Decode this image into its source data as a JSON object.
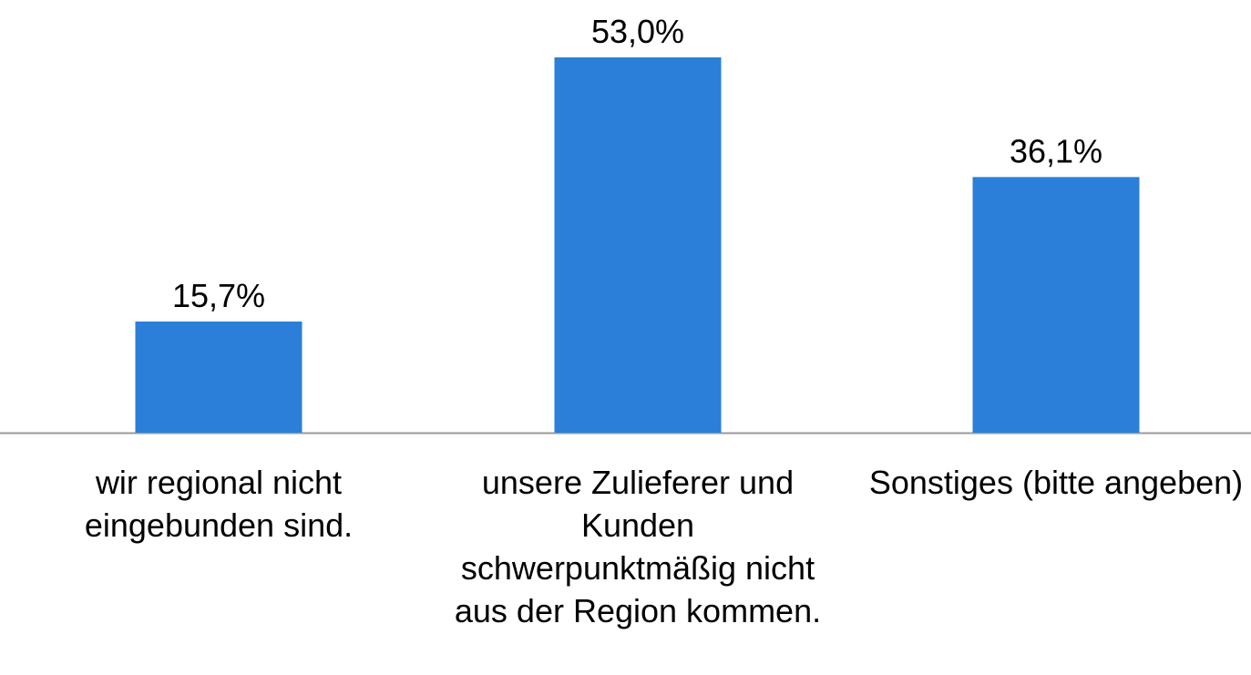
{
  "chart_data": {
    "type": "bar",
    "categories": [
      "wir regional nicht eingebunden sind.",
      "unsere Zulieferer und Kunden schwerpunktmäßig nicht aus der Region kommen.",
      "Sonstiges (bitte angeben)"
    ],
    "values": [
      15.7,
      53.0,
      36.1
    ],
    "value_labels": [
      "15,7%",
      "53,0%",
      "36,1%"
    ],
    "color": "#2b7fd8"
  }
}
